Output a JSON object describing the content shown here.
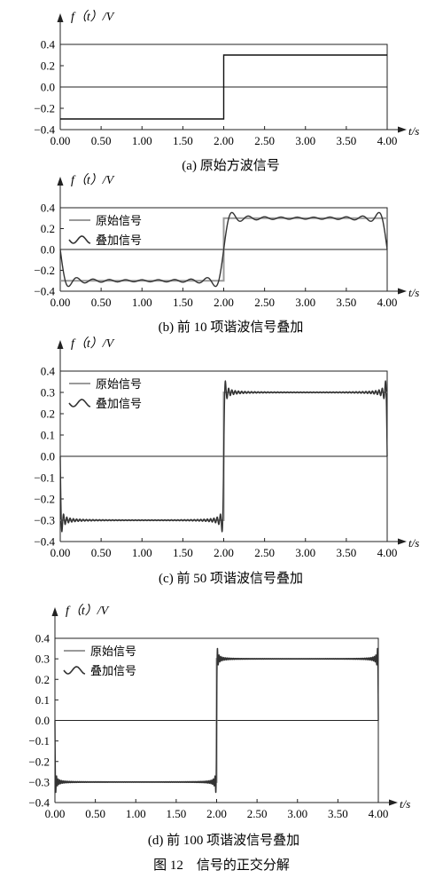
{
  "figure_caption": "图 12　信号的正交分解",
  "chart_data": [
    {
      "type": "line",
      "caption": "(a) 原始方波信号",
      "ylabel": "f（t）/V",
      "xlabel": "t/s",
      "xlim": [
        0,
        4
      ],
      "ylim": [
        -0.4,
        0.4
      ],
      "xticks": [
        "0.00",
        "0.50",
        "1.00",
        "1.50",
        "2.00",
        "2.50",
        "3.00",
        "3.50",
        "4.00"
      ],
      "yticks": [
        "0.4",
        "0.2",
        "0.0",
        "−0.2",
        "−0.4"
      ],
      "legend": [],
      "series": [
        {
          "x": [
            0,
            2,
            2,
            4
          ],
          "y": [
            -0.3,
            -0.3,
            0.3,
            0.3
          ]
        }
      ]
    },
    {
      "type": "line",
      "caption": "(b) 前 10 项谐波信号叠加",
      "ylabel": "f（t）/V",
      "xlabel": "t/s",
      "xlim": [
        0,
        4
      ],
      "ylim": [
        -0.4,
        0.4
      ],
      "xticks": [
        "0.00",
        "0.50",
        "1.00",
        "1.50",
        "2.00",
        "2.50",
        "3.00",
        "3.50",
        "4.00"
      ],
      "yticks": [
        "0.4",
        "0.2",
        "0.0",
        "−0.2",
        "−0.4"
      ],
      "legend": [
        "原始信号",
        "叠加信号"
      ],
      "legend_position": "top-left",
      "harmonics": 10,
      "series": [
        {
          "name": "原始信号",
          "x": [
            0,
            2,
            2,
            4
          ],
          "y": [
            -0.3,
            -0.3,
            0.3,
            0.3
          ],
          "color": "#9a9a9a"
        },
        {
          "name": "叠加信号",
          "color": "#333333"
        }
      ]
    },
    {
      "type": "line",
      "caption": "(c) 前 50 项谐波信号叠加",
      "ylabel": "f（t）/V",
      "xlabel": "t/s",
      "xlim": [
        0,
        4
      ],
      "ylim": [
        -0.4,
        0.4
      ],
      "xticks": [
        "0.00",
        "0.50",
        "1.00",
        "1.50",
        "2.00",
        "2.50",
        "3.00",
        "3.50",
        "4.00"
      ],
      "yticks": [
        "0.4",
        "0.3",
        "0.2",
        "0.1",
        "0.0",
        "−0.1",
        "−0.2",
        "−0.3",
        "−0.4"
      ],
      "legend": [
        "原始信号",
        "叠加信号"
      ],
      "legend_position": "top-left",
      "harmonics": 50,
      "series": [
        {
          "name": "原始信号",
          "x": [
            0,
            2,
            2,
            4
          ],
          "y": [
            -0.3,
            -0.3,
            0.3,
            0.3
          ],
          "color": "#9a9a9a"
        },
        {
          "name": "叠加信号",
          "color": "#333333"
        }
      ]
    },
    {
      "type": "line",
      "caption": "(d) 前 100 项谐波信号叠加",
      "ylabel": "f（t）/V",
      "xlabel": "t/s",
      "xlim": [
        0,
        4
      ],
      "ylim": [
        -0.4,
        0.4
      ],
      "xticks": [
        "0.00",
        "0.50",
        "1.00",
        "1.50",
        "2.00",
        "2.50",
        "3.00",
        "3.50",
        "4.00"
      ],
      "yticks": [
        "0.4",
        "0.3",
        "0.2",
        "0.1",
        "0.0",
        "−0.1",
        "−0.2",
        "−0.3",
        "−0.4"
      ],
      "legend": [
        "原始信号",
        "叠加信号"
      ],
      "legend_position": "top-left",
      "harmonics": 100,
      "series": [
        {
          "name": "原始信号",
          "x": [
            0,
            2,
            2,
            4
          ],
          "y": [
            -0.3,
            -0.3,
            0.3,
            0.3
          ],
          "color": "#9a9a9a"
        },
        {
          "name": "叠加信号",
          "color": "#333333"
        }
      ]
    }
  ]
}
